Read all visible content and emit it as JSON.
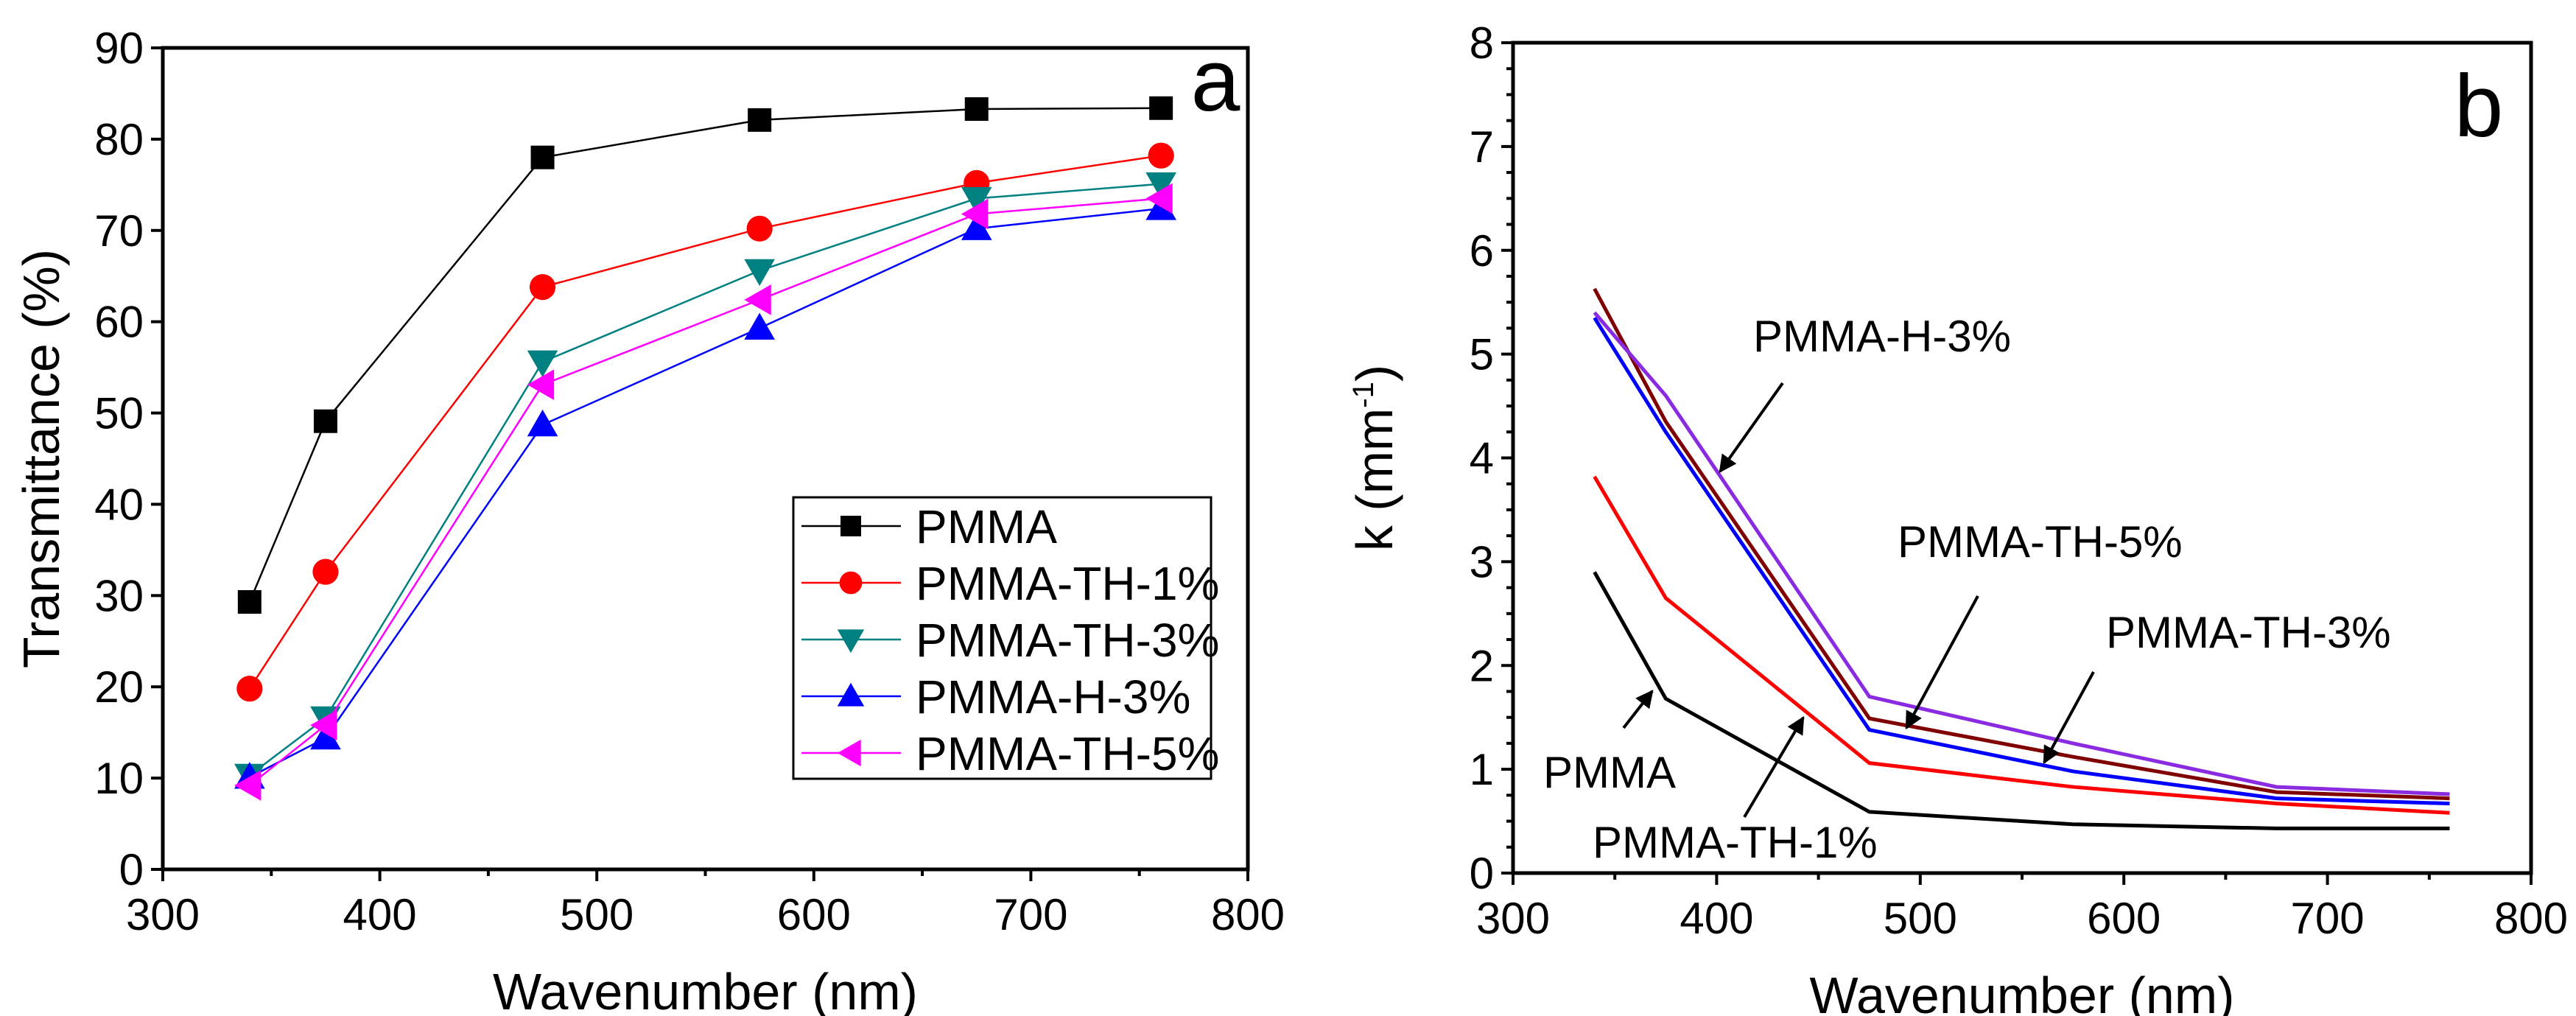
{
  "chart_data": [
    {
      "type": "line",
      "panel_label": "a",
      "xlabel": "Wavenumber (nm)",
      "ylabel": "Transmittance (%)",
      "xlim": [
        300,
        800
      ],
      "ylim": [
        0,
        90
      ],
      "xticks": [
        300,
        400,
        500,
        600,
        700,
        800
      ],
      "yticks": [
        0,
        10,
        20,
        30,
        40,
        50,
        60,
        70,
        80,
        90
      ],
      "grid": false,
      "legend_position": "bottom-right",
      "x": [
        340,
        375,
        475,
        575,
        675,
        760
      ],
      "series": [
        {
          "name": "PMMA",
          "color": "#000000",
          "marker": "square",
          "values": [
            29.3,
            49.1,
            78.0,
            82.1,
            83.3,
            83.4
          ]
        },
        {
          "name": "PMMA-TH-1%",
          "color": "#ff0000",
          "marker": "circle",
          "values": [
            19.8,
            32.6,
            63.8,
            70.2,
            75.2,
            78.2
          ]
        },
        {
          "name": "PMMA-TH-3%",
          "color": "#008080",
          "marker": "triangle-down",
          "values": [
            10.3,
            16.6,
            55.6,
            65.6,
            73.5,
            75.1
          ]
        },
        {
          "name": "PMMA-H-3%",
          "color": "#0000ff",
          "marker": "triangle-up",
          "values": [
            10.1,
            14.4,
            48.7,
            59.3,
            70.2,
            72.4
          ]
        },
        {
          "name": "PMMA-TH-5%",
          "color": "#ff00ff",
          "marker": "triangle-left",
          "values": [
            9.2,
            15.8,
            53.1,
            62.4,
            71.8,
            73.5
          ]
        }
      ]
    },
    {
      "type": "line",
      "panel_label": "b",
      "xlabel": "Wavenumber (nm)",
      "ylabel": "k (mm",
      "ylabel_sup": "-1",
      "ylabel_end": ")",
      "xlim": [
        300,
        800
      ],
      "ylim": [
        0,
        8
      ],
      "xticks": [
        300,
        400,
        500,
        600,
        700,
        800
      ],
      "yticks": [
        0,
        1,
        2,
        3,
        4,
        5,
        6,
        7,
        8
      ],
      "grid": false,
      "x": [
        340,
        375,
        475,
        575,
        675,
        760
      ],
      "series": [
        {
          "name": "PMMA",
          "color": "#000000",
          "values": [
            2.9,
            1.68,
            0.59,
            0.47,
            0.43,
            0.43
          ]
        },
        {
          "name": "PMMA-TH-1%",
          "color": "#ff0000",
          "values": [
            3.82,
            2.65,
            1.06,
            0.83,
            0.67,
            0.58
          ]
        },
        {
          "name": "PMMA-TH-3%",
          "color": "#0000ff",
          "values": [
            5.35,
            4.25,
            1.38,
            0.98,
            0.72,
            0.67
          ]
        },
        {
          "name": "PMMA-TH-5%",
          "color": "#800000",
          "values": [
            5.63,
            4.35,
            1.49,
            1.12,
            0.78,
            0.72
          ]
        },
        {
          "name": "PMMA-H-3%",
          "color": "#8a2be2",
          "values": [
            5.4,
            4.6,
            1.7,
            1.25,
            0.83,
            0.76
          ]
        }
      ],
      "annotations": [
        "PMMA-H-3%",
        "PMMA-TH-5%",
        "PMMA-TH-3%",
        "PMMA",
        "PMMA-TH-1%"
      ]
    }
  ]
}
